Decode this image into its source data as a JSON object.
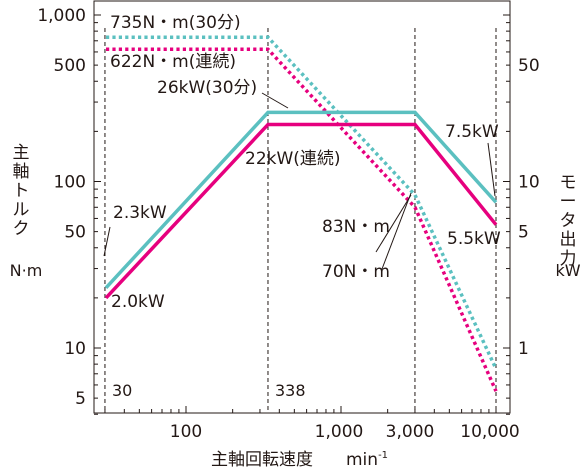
{
  "chart_data": {
    "type": "line",
    "title": "",
    "xlabel": "主軸回転速度",
    "xunit_base": "min",
    "xunit_exp": "-1",
    "ylabel_left": "主軸トルク",
    "ylabel_left_unit": "N·m",
    "ylabel_right": "モータ出力",
    "ylabel_right_unit": "kW",
    "xscale": "log",
    "yscale": "log",
    "xlim": [
      24,
      11000
    ],
    "ylim_left": [
      4,
      1000
    ],
    "ylim_right": [
      0.4,
      100
    ],
    "x_ticks": [
      {
        "value": 100,
        "label": "100"
      },
      {
        "value": 1000,
        "label": "1,000"
      },
      {
        "value": 3000,
        "label": "3,000"
      },
      {
        "value": 10000,
        "label": "10,000"
      }
    ],
    "y_left_ticks": [
      {
        "value": 1000,
        "label": "1,000"
      },
      {
        "value": 500,
        "label": "500"
      },
      {
        "value": 100,
        "label": "100"
      },
      {
        "value": 50,
        "label": "50"
      },
      {
        "value": 10,
        "label": "10"
      },
      {
        "value": 5,
        "label": "5"
      }
    ],
    "y_right_ticks": [
      {
        "value": 50,
        "label": "50"
      },
      {
        "value": 10,
        "label": "10"
      },
      {
        "value": 5,
        "label": "5"
      },
      {
        "value": 1,
        "label": "1"
      }
    ],
    "vlines": [
      {
        "x": 30,
        "label": "30"
      },
      {
        "x": 338,
        "label": "338"
      },
      {
        "x": 3000,
        "label": ""
      },
      {
        "x": 10000,
        "label": ""
      }
    ],
    "series": [
      {
        "kind": "torque_30min",
        "axis": "left",
        "color": "#5bc0c0",
        "dashed": true,
        "x": [
          30,
          338,
          3000,
          10000
        ],
        "y": [
          735,
          735,
          83,
          7.5
        ]
      },
      {
        "kind": "torque_cont",
        "axis": "left",
        "color": "#e6007e",
        "dashed": true,
        "x": [
          30,
          338,
          3000,
          10000
        ],
        "y": [
          622,
          622,
          70,
          5.5
        ]
      },
      {
        "kind": "power_30min",
        "axis": "right",
        "color": "#5bc0c0",
        "dashed": false,
        "x": [
          30,
          338,
          3000,
          10000
        ],
        "y": [
          2.3,
          26,
          26,
          7.5
        ]
      },
      {
        "kind": "power_cont",
        "axis": "right",
        "color": "#e6007e",
        "dashed": false,
        "x": [
          30,
          338,
          3000,
          10000
        ],
        "y": [
          2.0,
          22,
          22,
          5.5
        ]
      }
    ],
    "annotations": [
      {
        "text": "735N・m(30分)"
      },
      {
        "text": "622N・m(連続)"
      },
      {
        "text": "26kW(30分)"
      },
      {
        "text": "22kW(連続)"
      },
      {
        "text": "7.5kW"
      },
      {
        "text": "5.5kW"
      },
      {
        "text": "2.3kW"
      },
      {
        "text": "2.0kW"
      },
      {
        "text": "83N・m"
      },
      {
        "text": "70N・m"
      }
    ],
    "grid": false,
    "legend": "none"
  }
}
